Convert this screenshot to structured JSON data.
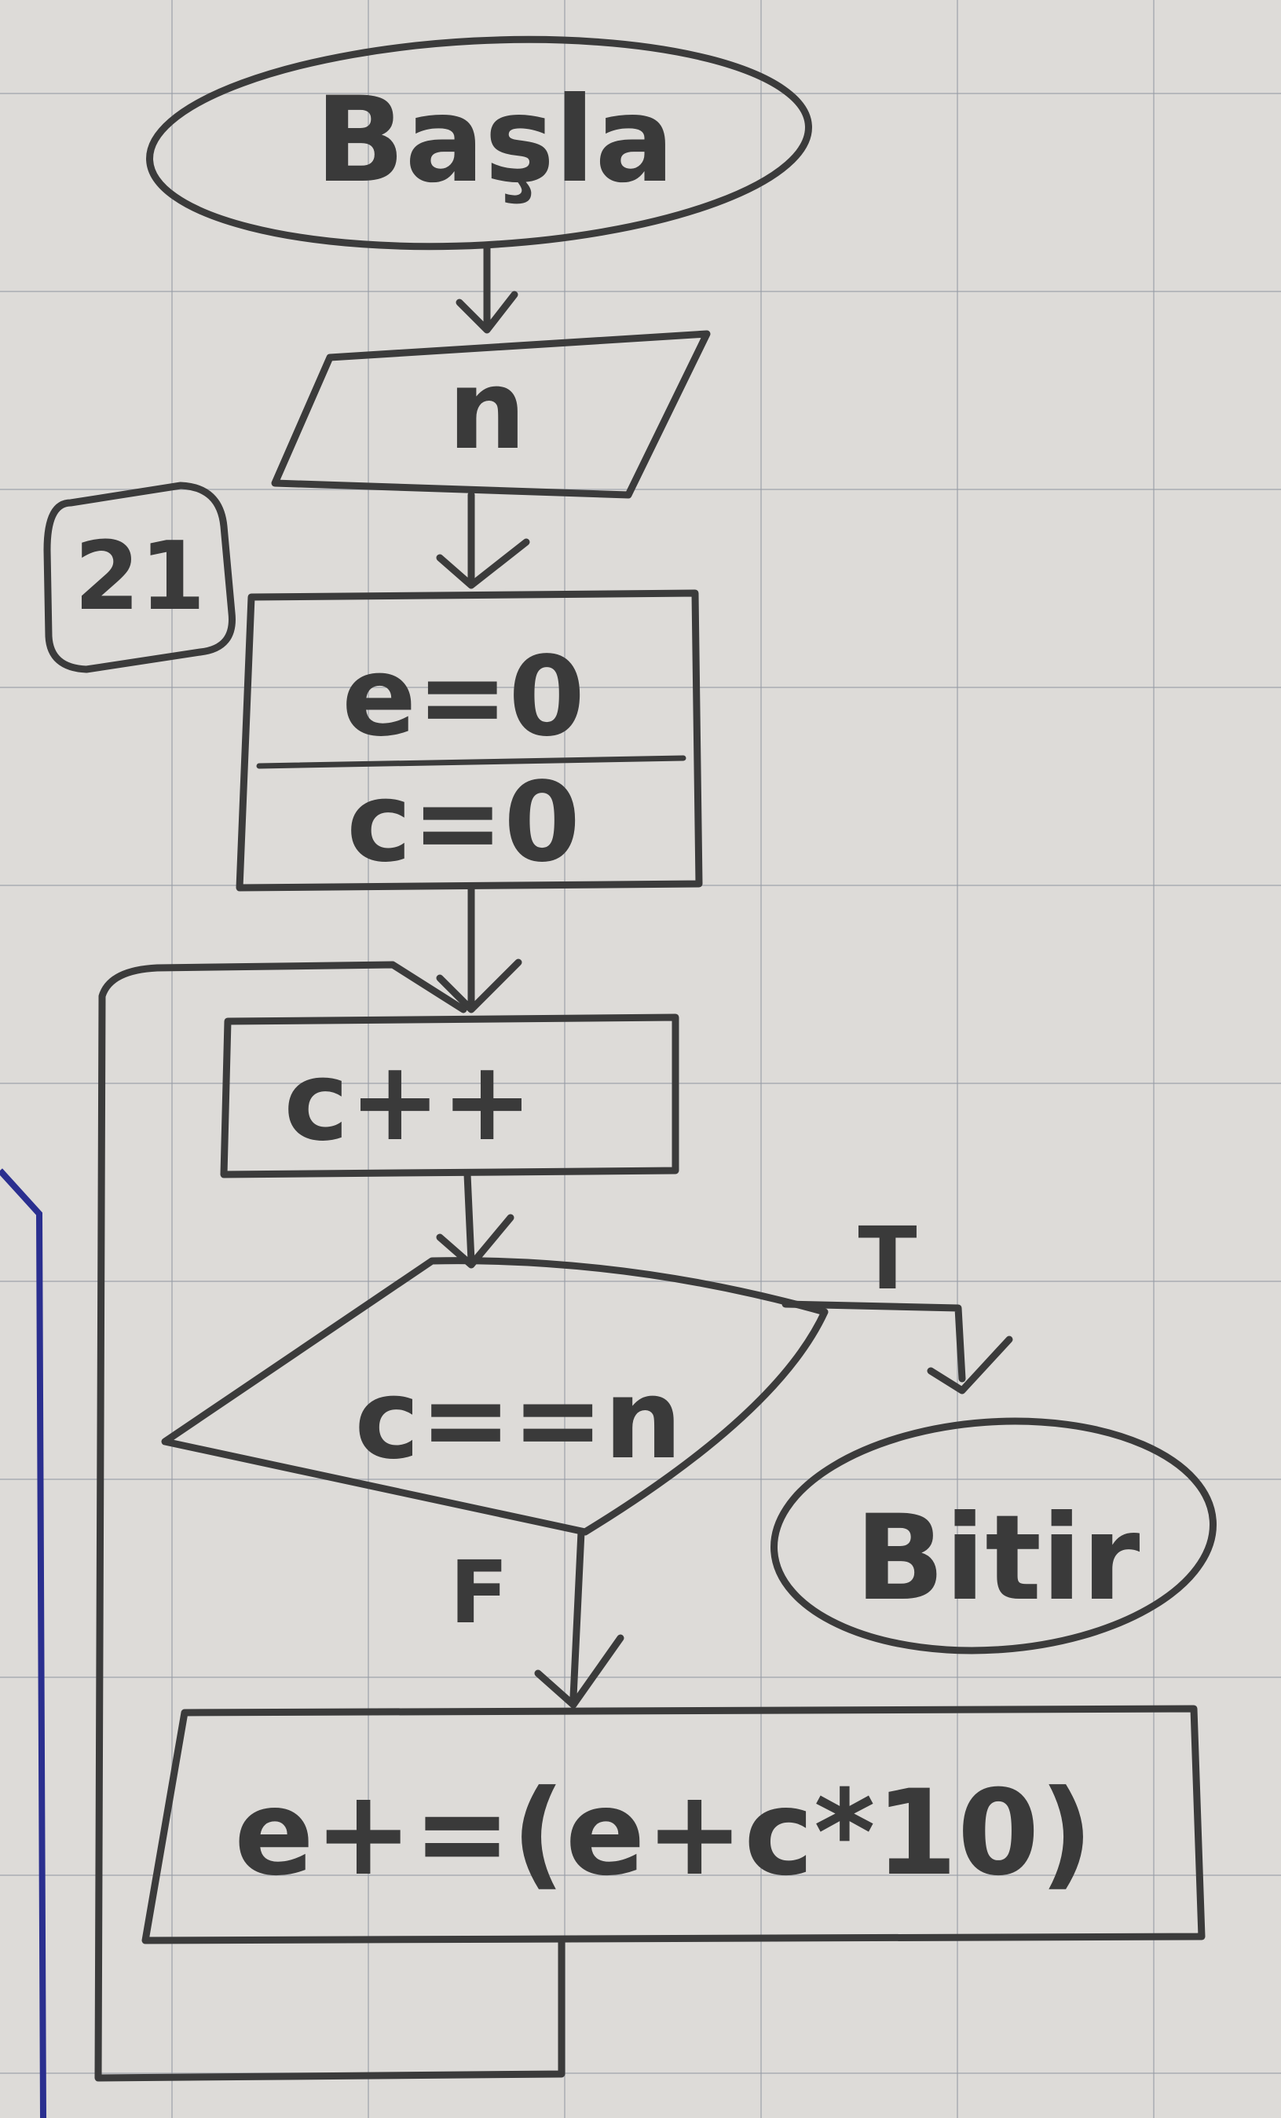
{
  "diagram": {
    "problem_number": "21",
    "nodes": {
      "start": "Başla",
      "input": "n",
      "init_line1": "e=0",
      "init_line2": "c=0",
      "increment": "c++",
      "condition": "c==n",
      "end": "Bitir",
      "update": "e+=(e+c*10)"
    },
    "edge_labels": {
      "true": "T",
      "false": "F"
    }
  }
}
